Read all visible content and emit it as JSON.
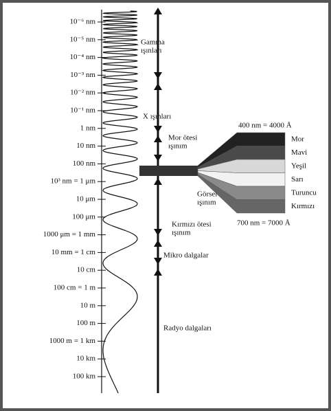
{
  "scale": [
    "10⁻⁶ nm",
    "10⁻⁵ nm",
    "10⁻⁴ nm",
    "10⁻³ nm",
    "10⁻² nm",
    "10⁻¹ nm",
    "1 nm",
    "10 nm",
    "100 nm",
    "10³ nm = 1 μm",
    "10 μm",
    "100 μm",
    "1000 μm = 1 mm",
    "10 mm = 1 cm",
    "10 cm",
    "100 cm = 1 m",
    "10 m",
    "100 m",
    "1000 m = 1 km",
    "10 km",
    "100 km"
  ],
  "bands": [
    {
      "lines": [
        "Gamma",
        "ışınları"
      ]
    },
    {
      "lines": [
        "X ışınları"
      ]
    },
    {
      "lines": [
        "Mor ötesi",
        "ışınım"
      ]
    },
    {
      "lines": [
        "Görsel",
        "ışınım"
      ]
    },
    {
      "lines": [
        "Kırmızı ötesi",
        "ışınım"
      ]
    },
    {
      "lines": [
        "Mikro dalgalar"
      ]
    },
    {
      "lines": [
        "Radyo dalgaları"
      ]
    }
  ],
  "visible": {
    "top_label": "400 nm = 4000 Å",
    "colors": [
      "Mor",
      "Mavi",
      "Yeşil",
      "Sarı",
      "Turuncu",
      "Kırmızı"
    ],
    "bottom_label": "700 nm = 7000 Å"
  }
}
